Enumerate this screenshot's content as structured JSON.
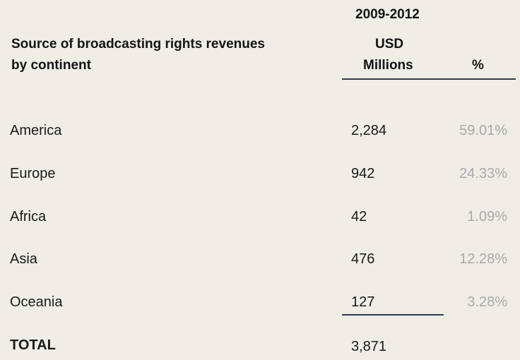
{
  "header": {
    "period": "2009-2012",
    "title_line1": "Source of broadcasting rights revenues",
    "title_line2": "by continent",
    "usd_line1": "USD",
    "usd_line2": "Millions",
    "pct_label": "%"
  },
  "rows": [
    {
      "label": "America",
      "value": "2,284",
      "pct": "59.01%"
    },
    {
      "label": "Europe",
      "value": "942",
      "pct": "24.33%"
    },
    {
      "label": "Africa",
      "value": "42",
      "pct": "1.09%"
    },
    {
      "label": "Asia",
      "value": "476",
      "pct": "12.28%"
    },
    {
      "label": "Oceania",
      "value": "127",
      "pct": "3.28%"
    }
  ],
  "total": {
    "label": "TOTAL",
    "value": "3,871"
  },
  "colors": {
    "background": "#efede6",
    "rule": "#2a3a5a",
    "pct_text": "#a9a9a9"
  },
  "chart_data": {
    "type": "table",
    "title": "Source of broadcasting rights revenues by continent",
    "period": "2009-2012",
    "columns": [
      "USD Millions",
      "%"
    ],
    "categories": [
      "America",
      "Europe",
      "Africa",
      "Asia",
      "Oceania"
    ],
    "series": [
      {
        "name": "USD Millions",
        "values": [
          2284,
          942,
          42,
          476,
          127
        ]
      },
      {
        "name": "%",
        "values": [
          59.01,
          24.33,
          1.09,
          12.28,
          3.28
        ]
      }
    ],
    "total": 3871
  }
}
